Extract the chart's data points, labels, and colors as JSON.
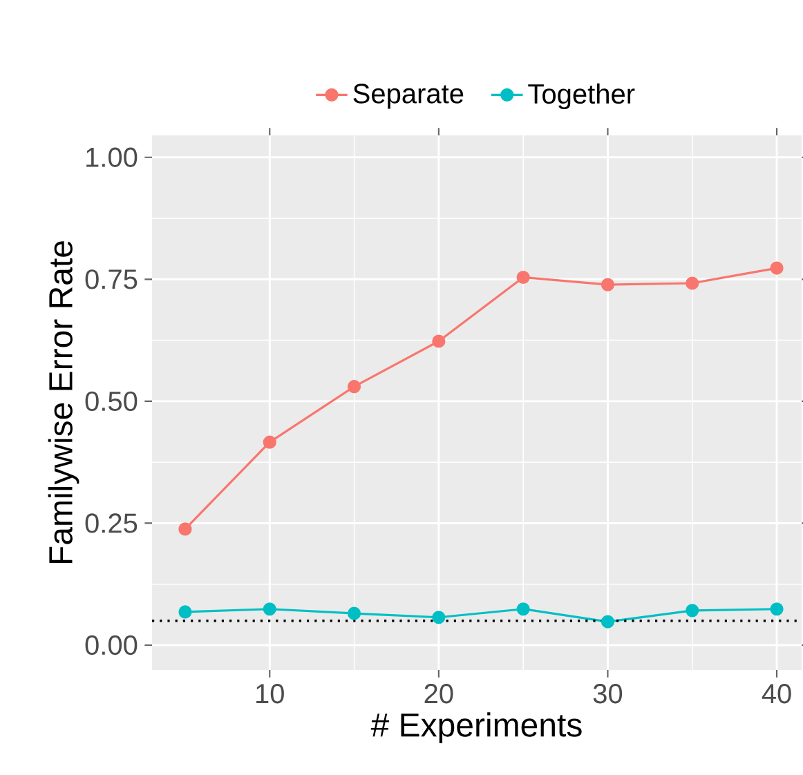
{
  "chart_data": {
    "type": "line",
    "xlabel": "# Experiments",
    "ylabel": "Familywise Error Rate",
    "x": [
      5,
      10,
      15,
      20,
      25,
      30,
      35,
      40
    ],
    "series": [
      {
        "name": "Separate",
        "color": "#F8766D",
        "values": [
          0.238,
          0.416,
          0.53,
          0.623,
          0.754,
          0.739,
          0.742,
          0.773
        ]
      },
      {
        "name": "Together",
        "color": "#00BFC4",
        "values": [
          0.068,
          0.074,
          0.065,
          0.057,
          0.074,
          0.048,
          0.071,
          0.074
        ]
      }
    ],
    "xlim": [
      3.04,
      41.47
    ],
    "ylim": [
      -0.051,
      1.045
    ],
    "xticks": [
      10,
      20,
      30,
      40
    ],
    "yticks": [
      {
        "value": 0,
        "label": "0.00"
      },
      {
        "value": 0.25,
        "label": "0.25"
      },
      {
        "value": 0.5,
        "label": "0.50"
      },
      {
        "value": 0.75,
        "label": "0.75"
      },
      {
        "value": 1,
        "label": "1.00"
      }
    ],
    "ref_lines": [
      {
        "axis": "y",
        "value": 0.05,
        "color": "#000000",
        "line_style": "dotted"
      }
    ],
    "grid": true,
    "legend": "top",
    "marker": "circle",
    "line_style": "solid"
  }
}
